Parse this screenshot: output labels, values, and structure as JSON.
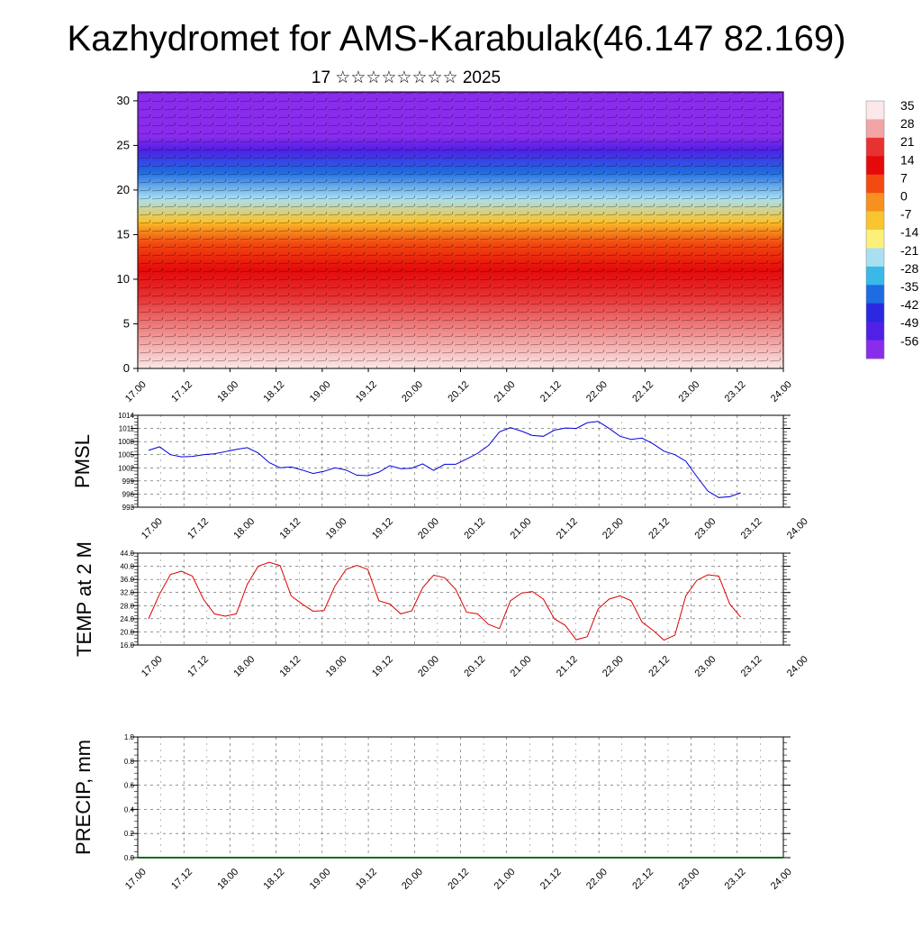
{
  "title": "Kazhydromet for AMS-Karabulak(46.147 82.169)",
  "subtitle": "17 ☆☆☆☆☆☆☆☆ 2025",
  "time_labels": [
    "17.00",
    "17.12",
    "18.00",
    "18.12",
    "19.00",
    "19.12",
    "20.00",
    "20.12",
    "21.00",
    "21.12",
    "22.00",
    "22.12",
    "23.00",
    "23.12",
    "24.00"
  ],
  "colorbar": {
    "labels": [
      "35",
      "28",
      "21",
      "14",
      "7",
      "0",
      "-7",
      "-14",
      "-21",
      "-28",
      "-35",
      "-42",
      "-49",
      "-56"
    ],
    "stops": [
      "#fbe8e8",
      "#f3a4a4",
      "#e83232",
      "#e40a0a",
      "#f24a10",
      "#f7901e",
      "#fac42e",
      "#fdf07a",
      "#a8e0f2",
      "#3ab8e8",
      "#1e6ce2",
      "#2a28e0",
      "#5020e6",
      "#8a2cec"
    ]
  },
  "chart_data": [
    {
      "type": "heatmap",
      "title": "",
      "ylabel": "",
      "xlabel": "",
      "ylim": [
        0,
        31
      ],
      "yticks": [
        0,
        5,
        10,
        15,
        20,
        25,
        30
      ],
      "description_units": "temperature cross-section with wind barbs",
      "value_range": [
        -56,
        35
      ],
      "profile_levels": [
        0,
        3,
        8,
        11,
        14,
        15.5,
        16.5,
        19,
        22,
        24.5,
        26,
        28,
        31
      ],
      "profile_values": [
        35,
        30,
        22,
        14,
        5,
        -2,
        -10,
        -21,
        -35,
        -49,
        -56,
        -56,
        -58
      ]
    },
    {
      "type": "line",
      "ylabel": "PMSL",
      "ylim": [
        993,
        1014
      ],
      "yticks": [
        993,
        996,
        999,
        1002,
        1005,
        1008,
        1011,
        1014
      ],
      "x_hours": [
        0,
        3,
        6,
        9,
        12,
        15,
        18,
        21,
        24,
        27,
        30,
        33,
        36,
        39,
        42,
        45,
        48,
        51,
        54,
        57,
        60,
        63,
        66,
        69,
        72,
        75,
        78,
        81,
        84,
        87,
        90,
        93,
        96,
        99,
        102,
        105,
        108,
        111,
        114,
        117,
        120,
        123,
        126,
        129,
        132,
        135,
        138,
        141,
        144,
        147,
        150,
        153,
        156,
        159,
        162
      ],
      "values": [
        1006,
        1006.8,
        1005,
        1004.5,
        1004.6,
        1005,
        1005.2,
        1005.7,
        1006.2,
        1006.6,
        1005.4,
        1003.2,
        1002,
        1002.2,
        1001.5,
        1000.7,
        1001.2,
        1002,
        1001.5,
        1000.3,
        1000.2,
        1001,
        1002.5,
        1001.8,
        1001.9,
        1002.9,
        1001.4,
        1002.8,
        1002.8,
        1004,
        1005.3,
        1007.1,
        1010.2,
        1011.2,
        1010.4,
        1009.4,
        1009.2,
        1010.6,
        1011.1,
        1011,
        1012.3,
        1012.6,
        1011,
        1009.2,
        1008.5,
        1008.8,
        1007.5,
        1005.8,
        1005,
        1003.5,
        1000,
        996.7,
        995.2,
        995.4,
        996.3
      ]
    },
    {
      "type": "line",
      "ylabel": "TEMP at 2 M",
      "ylim": [
        16,
        44
      ],
      "yticks": [
        "16.0",
        "20.0",
        "24.0",
        "28.0",
        "32.0",
        "36.0",
        "40.0",
        "44.0"
      ],
      "x_hours": [
        0,
        3,
        6,
        9,
        12,
        15,
        18,
        21,
        24,
        27,
        30,
        33,
        36,
        39,
        42,
        45,
        48,
        51,
        54,
        57,
        60,
        63,
        66,
        69,
        72,
        75,
        78,
        81,
        84,
        87,
        90,
        93,
        96,
        99,
        102,
        105,
        108,
        111,
        114,
        117,
        120,
        123,
        126,
        129,
        132,
        135,
        138,
        141,
        144,
        147,
        150,
        153,
        156,
        159,
        162
      ],
      "values": [
        24,
        31.5,
        37.5,
        38.5,
        37,
        30,
        25.5,
        24.8,
        25.5,
        34.5,
        40,
        41.2,
        40.2,
        31,
        28.5,
        26.3,
        26.5,
        34,
        39,
        40.3,
        39,
        29.5,
        28.5,
        25.5,
        26.4,
        33.5,
        37.3,
        36.5,
        33,
        26,
        25.5,
        22.3,
        21,
        29.5,
        31.8,
        32.3,
        30,
        24,
        22,
        17.6,
        18.5,
        27,
        30,
        31,
        29.5,
        23,
        20.5,
        17.5,
        19,
        31,
        35.7,
        37.4,
        37,
        28.5,
        24.5
      ]
    },
    {
      "type": "bar",
      "ylabel": "PRECIP, mm",
      "ylim": [
        0,
        1
      ],
      "yticks": [
        "0.0",
        "0.2",
        "0.4",
        "0.6",
        "0.8",
        "1.0"
      ],
      "values_all": 0
    }
  ]
}
